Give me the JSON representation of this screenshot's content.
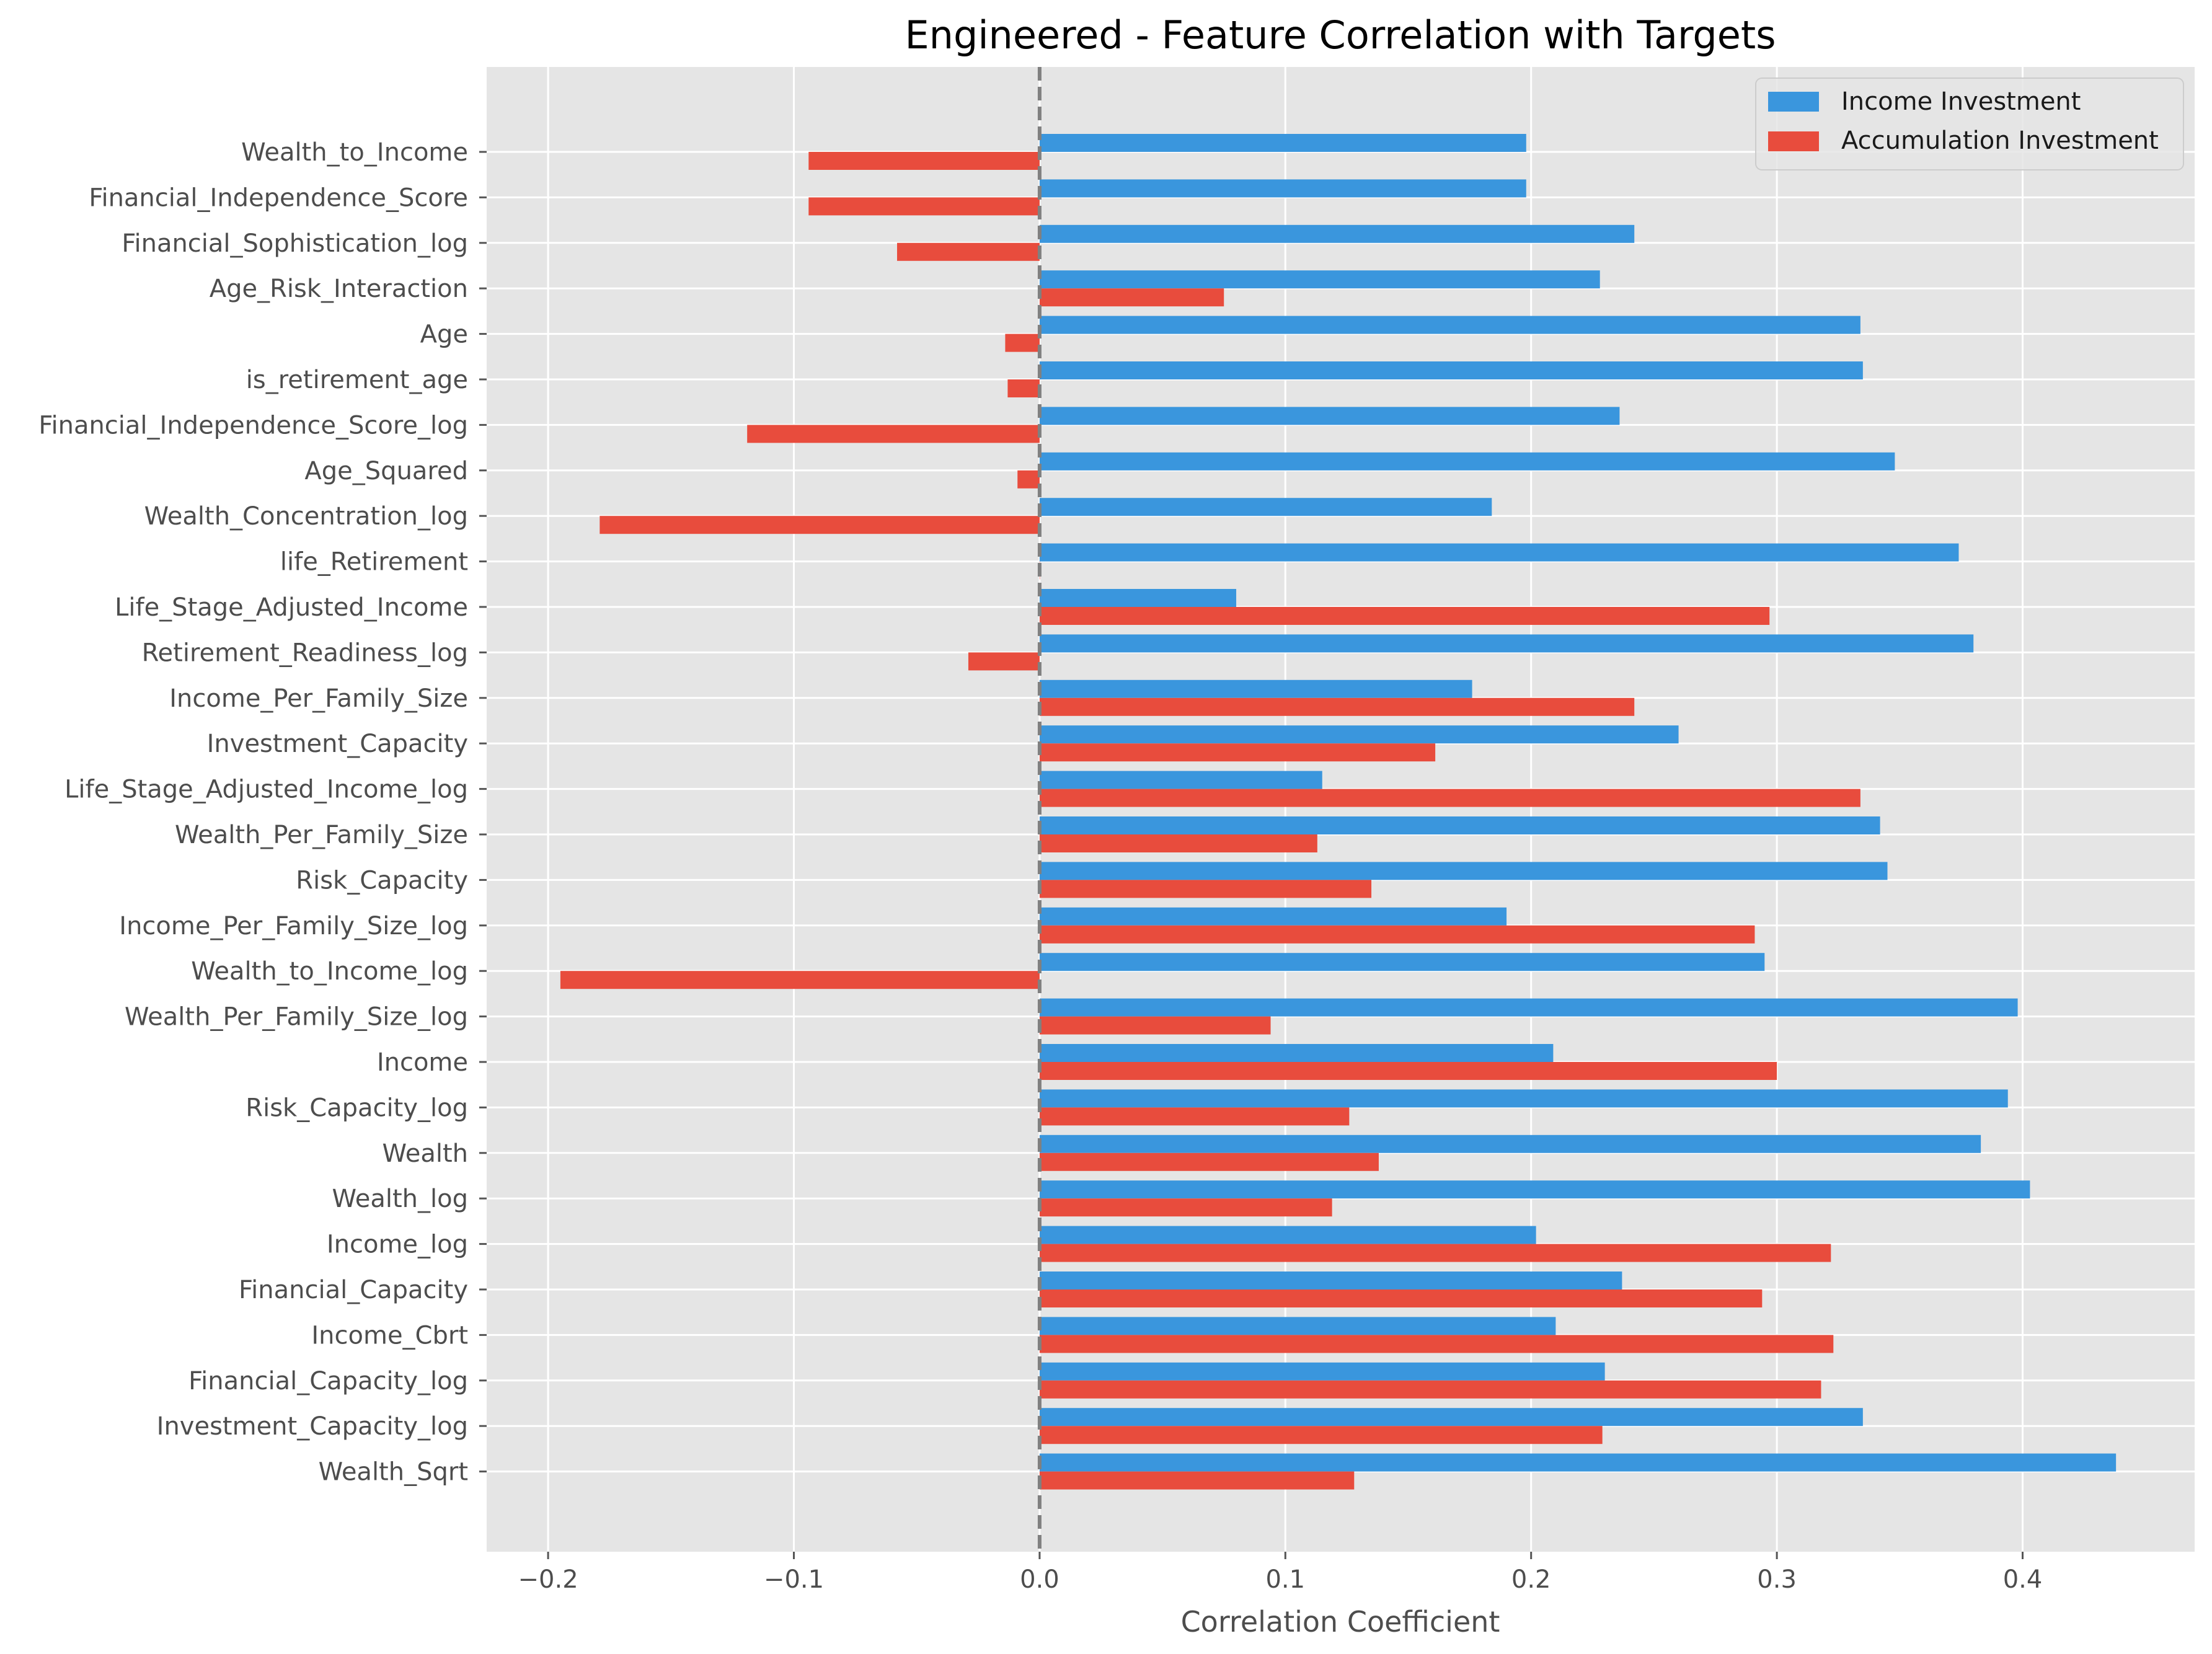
{
  "chart_data": {
    "type": "bar",
    "orientation": "horizontal",
    "title": "Engineered - Feature Correlation with Targets",
    "xlabel": "Correlation Coefficient",
    "ylabel": "",
    "xlim": [
      -0.225,
      0.47
    ],
    "xticks": [
      -0.2,
      -0.1,
      0.0,
      0.1,
      0.2,
      0.3,
      0.4
    ],
    "xtick_labels": [
      "−0.2",
      "−0.1",
      "0.0",
      "0.1",
      "0.2",
      "0.3",
      "0.4"
    ],
    "grid": true,
    "zero_line": "dashed",
    "legend_position": "top-right",
    "colors": {
      "income": "#3a96dd",
      "accumulation": "#e84c3d",
      "background": "#e5e5e5",
      "grid": "#ffffff",
      "zero": "#808080"
    },
    "categories": [
      "Wealth_to_Income",
      "Financial_Independence_Score",
      "Financial_Sophistication_log",
      "Age_Risk_Interaction",
      "Age",
      "is_retirement_age",
      "Financial_Independence_Score_log",
      "Age_Squared",
      "Wealth_Concentration_log",
      "life_Retirement",
      "Life_Stage_Adjusted_Income",
      "Retirement_Readiness_log",
      "Income_Per_Family_Size",
      "Investment_Capacity",
      "Life_Stage_Adjusted_Income_log",
      "Wealth_Per_Family_Size",
      "Risk_Capacity",
      "Income_Per_Family_Size_log",
      "Wealth_to_Income_log",
      "Wealth_Per_Family_Size_log",
      "Income",
      "Risk_Capacity_log",
      "Wealth",
      "Wealth_log",
      "Income_log",
      "Financial_Capacity",
      "Income_Cbrt",
      "Financial_Capacity_log",
      "Investment_Capacity_log",
      "Wealth_Sqrt"
    ],
    "series": [
      {
        "name": "Income Investment",
        "values": [
          0.198,
          0.198,
          0.242,
          0.228,
          0.334,
          0.335,
          0.236,
          0.348,
          0.184,
          0.374,
          0.08,
          0.38,
          0.176,
          0.26,
          0.115,
          0.342,
          0.345,
          0.19,
          0.295,
          0.398,
          0.209,
          0.394,
          0.383,
          0.403,
          0.202,
          0.237,
          0.21,
          0.23,
          0.335,
          0.438
        ]
      },
      {
        "name": "Accumulation Investment",
        "values": [
          -0.094,
          -0.094,
          -0.058,
          0.075,
          -0.014,
          -0.013,
          -0.119,
          -0.009,
          -0.179,
          0.0,
          0.297,
          -0.029,
          0.242,
          0.161,
          0.334,
          0.113,
          0.135,
          0.291,
          -0.195,
          0.094,
          0.3,
          0.126,
          0.138,
          0.119,
          0.322,
          0.294,
          0.323,
          0.318,
          0.229,
          0.128
        ]
      }
    ]
  }
}
